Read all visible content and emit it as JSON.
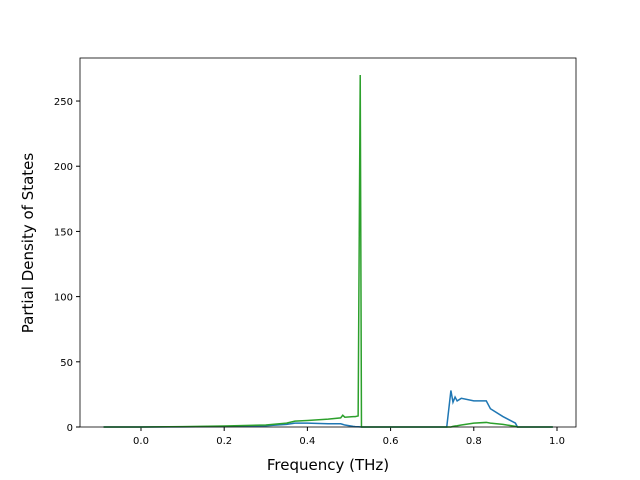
{
  "chart_data": {
    "type": "line",
    "xlabel": "Frequency (THz)",
    "ylabel": "Partial Density of States",
    "x": [
      -0.09,
      0.0,
      0.1,
      0.2,
      0.3,
      0.35,
      0.37,
      0.4,
      0.45,
      0.48,
      0.485,
      0.49,
      0.51,
      0.515,
      0.522,
      0.527,
      0.53,
      0.6,
      0.7,
      0.735,
      0.745,
      0.75,
      0.755,
      0.76,
      0.77,
      0.8,
      0.83,
      0.84,
      0.87,
      0.9,
      0.905,
      0.99
    ],
    "series": [
      {
        "color": "#1f77b4",
        "values": [
          0,
          0,
          0.1,
          0.4,
          1,
          2,
          3,
          3,
          2.5,
          2.5,
          2,
          1.5,
          0.5,
          0.3,
          0.2,
          0.1,
          0,
          0,
          0,
          0,
          28,
          19,
          23,
          20,
          22,
          20,
          20,
          14,
          8,
          3,
          0,
          0
        ]
      },
      {
        "color": "#2ca02c",
        "values": [
          0,
          0,
          0.3,
          0.8,
          1.5,
          3,
          4.5,
          5,
          6,
          7,
          9,
          7.5,
          8,
          8,
          8.5,
          270,
          0,
          0,
          0,
          0,
          0,
          0.5,
          0.8,
          1,
          1.5,
          3,
          3.5,
          3,
          2,
          0.5,
          0,
          0
        ]
      }
    ],
    "xlim": [
      -0.1466,
      1.0457
    ],
    "xticks": [
      {
        "value": 0,
        "label": "0.0"
      },
      0.2,
      0.4,
      0.6,
      0.8,
      {
        "value": 1,
        "label": "1.0"
      }
    ],
    "ylim": [
      0,
      283
    ],
    "yticks": [
      0,
      50,
      100,
      150,
      200,
      250
    ]
  }
}
